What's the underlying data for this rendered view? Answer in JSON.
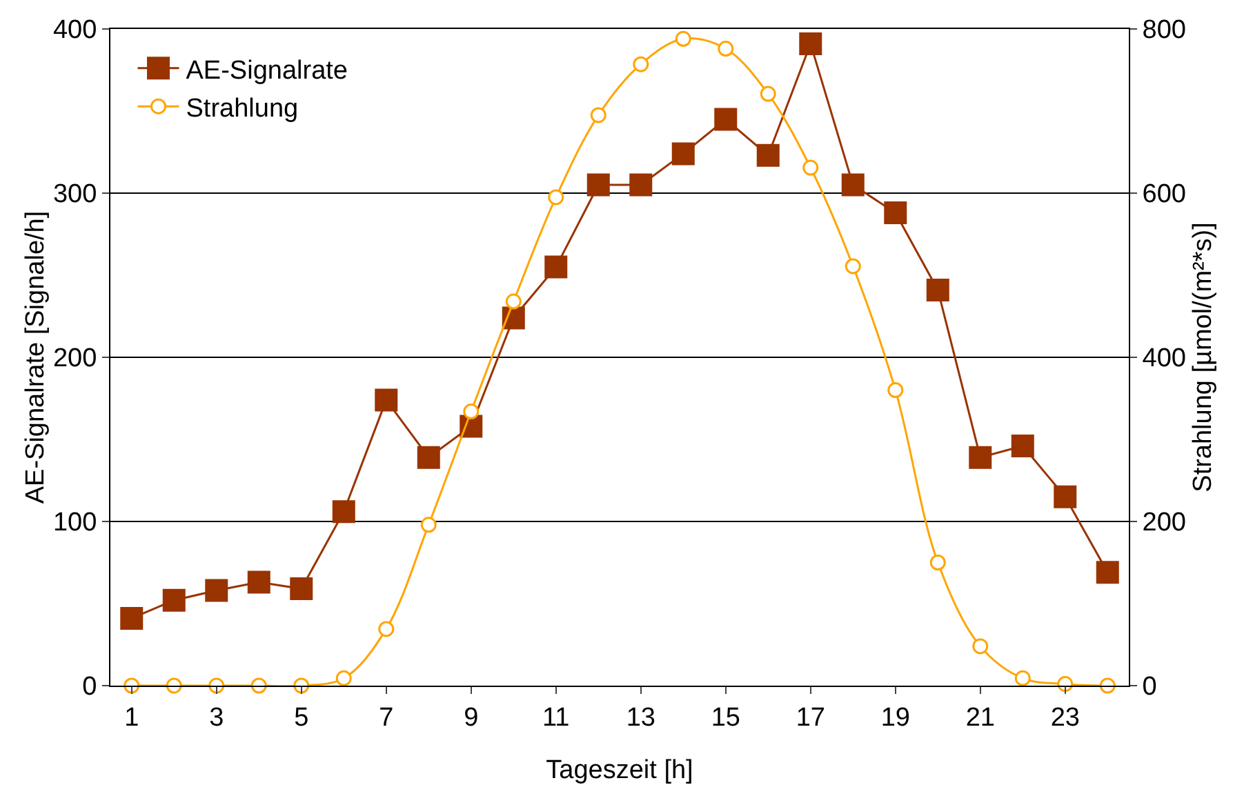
{
  "chart_data": {
    "type": "line",
    "xlabel": "Tageszeit [h]",
    "ylabel": "AE-Signalrate [Signale/h]",
    "y2label": "Strahlung [µmol/(m²*s)]",
    "x": [
      1,
      2,
      3,
      4,
      5,
      6,
      7,
      8,
      9,
      10,
      11,
      12,
      13,
      14,
      15,
      16,
      17,
      18,
      19,
      20,
      21,
      22,
      23,
      24
    ],
    "xlim": [
      0.5,
      24.5
    ],
    "xticks": [
      1,
      3,
      5,
      7,
      9,
      11,
      13,
      15,
      17,
      19,
      21,
      23
    ],
    "ylim": [
      0,
      400
    ],
    "yticks": [
      0,
      100,
      200,
      300,
      400
    ],
    "y2lim": [
      0,
      800
    ],
    "y2ticks": [
      0,
      200,
      400,
      600,
      800
    ],
    "grid": "y",
    "legend": "top left",
    "series": [
      {
        "name": "AE-Signalrate",
        "color": "#993300",
        "marker": "square",
        "values": [
          41,
          52,
          58,
          63,
          59,
          106,
          174,
          139,
          158,
          224,
          255,
          305,
          305,
          324,
          345,
          323,
          391,
          305,
          288,
          241,
          139,
          146,
          115,
          69
        ]
      },
      {
        "name": "Strahlung",
        "color": "#ffa500",
        "marker": "circle",
        "axis": "y2",
        "values": [
          0,
          0,
          0,
          0,
          0,
          9,
          69,
          196,
          334,
          468,
          595,
          695,
          757,
          788,
          776,
          721,
          631,
          511,
          360,
          150,
          48,
          9,
          2,
          0
        ]
      }
    ]
  }
}
